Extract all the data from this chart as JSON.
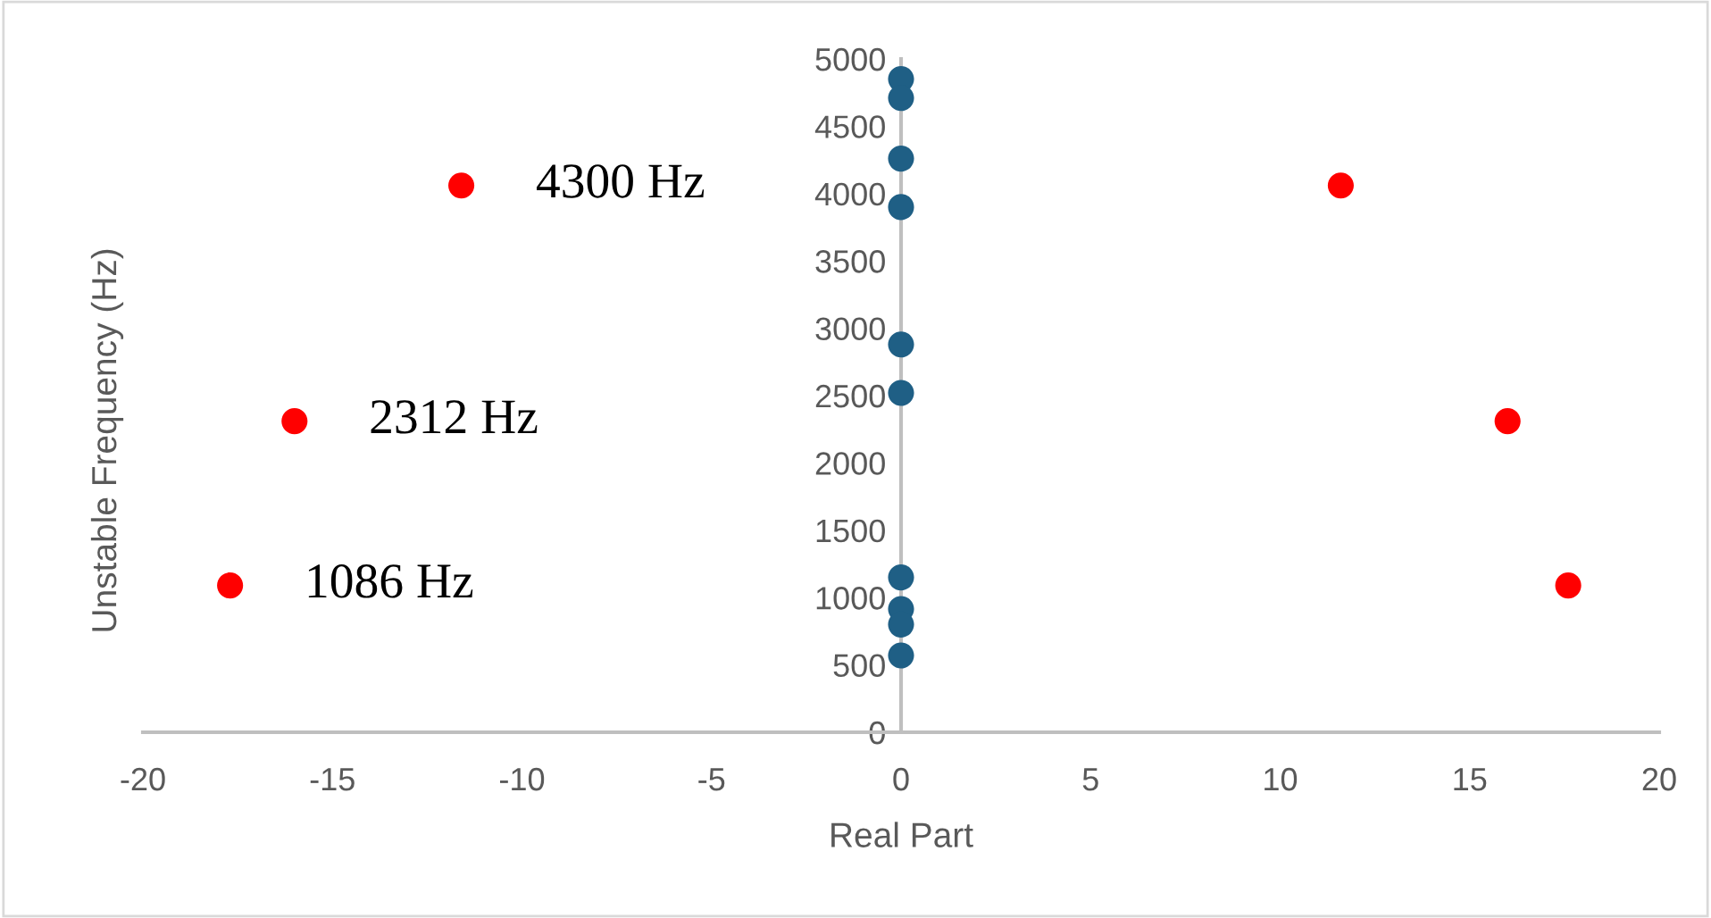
{
  "chart_data": {
    "type": "scatter",
    "xlabel": "Real Part",
    "ylabel": "Unstable Frequency (Hz)",
    "xlim": [
      -20,
      20
    ],
    "xticks": [
      -20,
      -15,
      -10,
      -5,
      0,
      5,
      10,
      15,
      20
    ],
    "ylim": [
      0,
      5000
    ],
    "yticks": [
      0,
      500,
      1000,
      1500,
      2000,
      2500,
      3000,
      3500,
      4000,
      4500,
      5000
    ],
    "grid": false,
    "legend": false,
    "marker": "circle",
    "series": [
      {
        "color": "#1f5f85",
        "x": [
          0,
          0,
          0,
          0,
          0,
          0,
          0,
          0,
          0,
          0
        ],
        "values": [
          4850,
          4710,
          4260,
          3900,
          2880,
          2520,
          1150,
          915,
          800,
          570
        ]
      },
      {
        "color": "#ff0000",
        "x": [
          -11.6,
          -16.0,
          -17.7,
          11.6,
          16.0,
          17.6
        ],
        "values": [
          4060,
          2310,
          1090,
          4060,
          2310,
          1090
        ]
      }
    ],
    "annotations": [
      {
        "text": "4300 Hz",
        "x": -11.6,
        "y": 4060
      },
      {
        "text": "2312 Hz",
        "x": -16.0,
        "y": 2310
      },
      {
        "text": "1086 Hz",
        "x": -17.7,
        "y": 1090
      }
    ]
  }
}
